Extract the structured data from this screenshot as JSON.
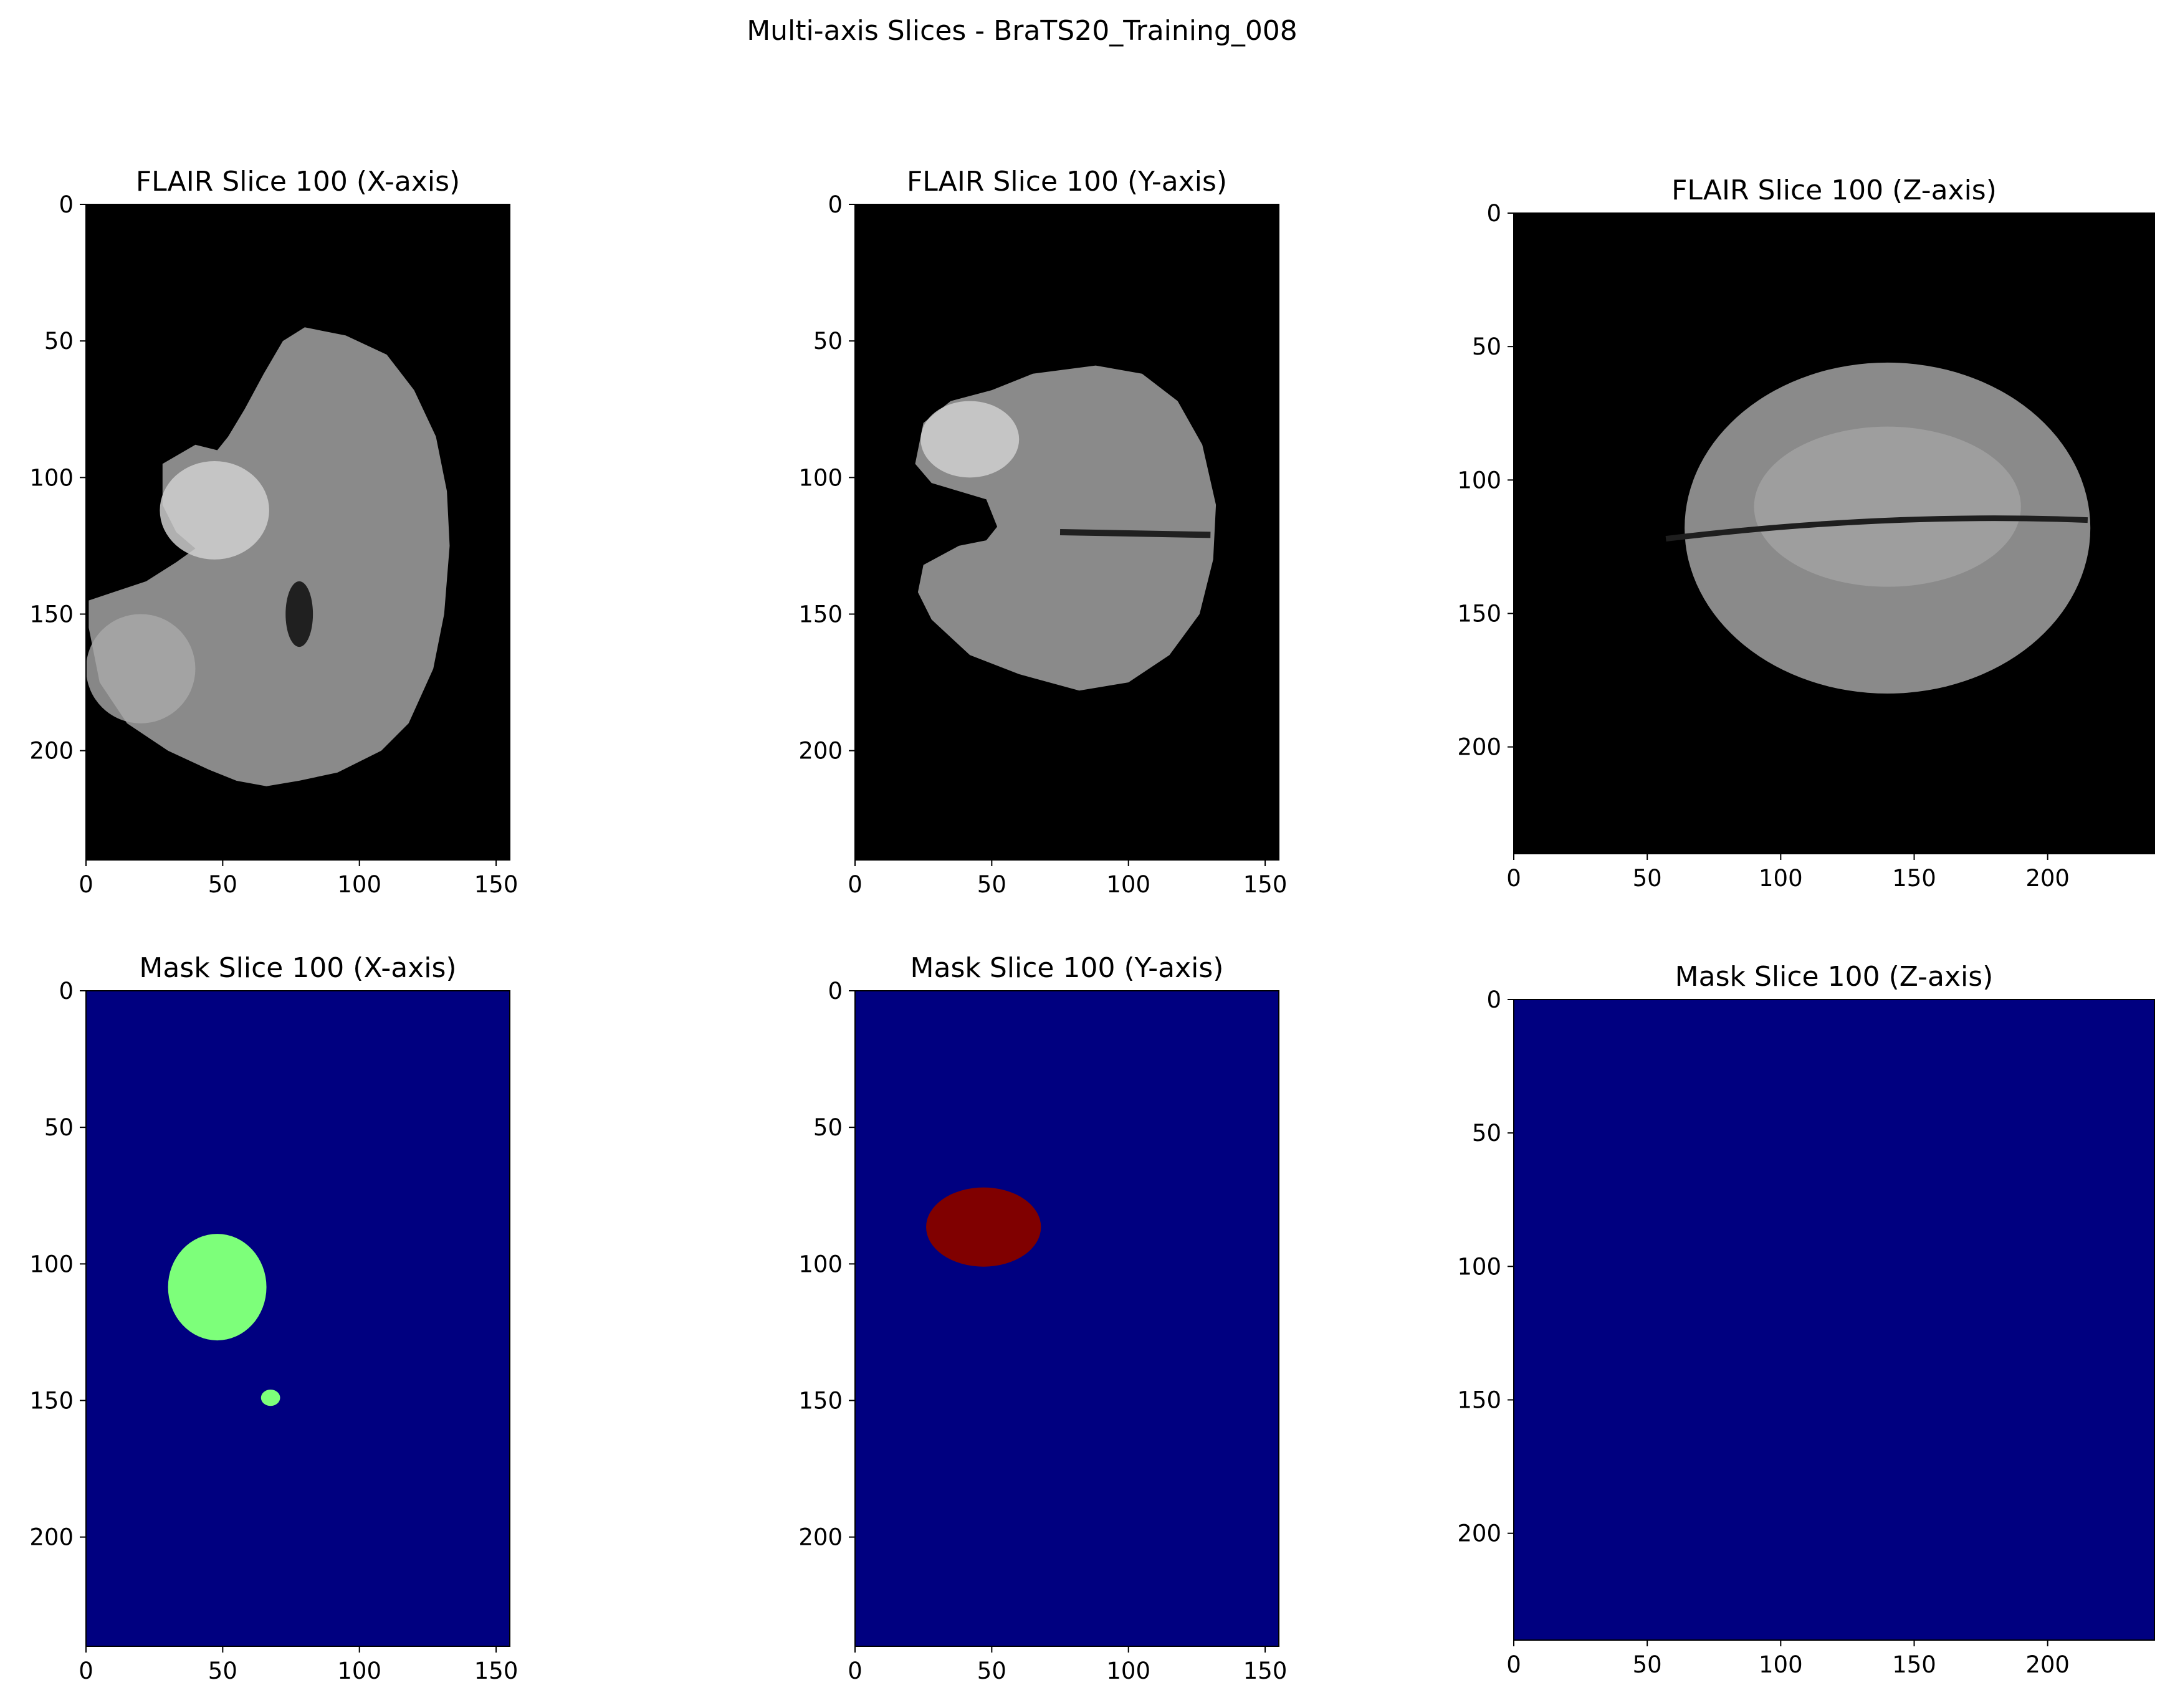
{
  "figure": {
    "suptitle": "Multi-axis Slices - BraTS20_Training_008"
  },
  "colors": {
    "flair_background": "#000000",
    "mask_background": "#000080",
    "mask_label_green": "#7dff7a",
    "mask_label_darkred": "#800000",
    "tissue_gray": "#8a8a8a",
    "tissue_bright": "#cfcfcf"
  },
  "chart_data": [
    {
      "type": "heatmap",
      "title": "FLAIR Slice 100 (X-axis)",
      "colormap": "gray",
      "x_ticks": [
        "0",
        "50",
        "100",
        "150"
      ],
      "y_ticks": [
        "0",
        "50",
        "100",
        "150",
        "200"
      ],
      "xlim": [
        0,
        155
      ],
      "ylim": [
        240,
        0
      ],
      "grid": false,
      "content": "sagittal brain slice with bright hyperintense lesion region near x 30-60, y 90-130"
    },
    {
      "type": "heatmap",
      "title": "FLAIR Slice 100 (Y-axis)",
      "colormap": "gray",
      "x_ticks": [
        "0",
        "50",
        "100",
        "150"
      ],
      "y_ticks": [
        "0",
        "50",
        "100",
        "150",
        "200"
      ],
      "xlim": [
        0,
        155
      ],
      "ylim": [
        240,
        0
      ],
      "grid": false,
      "content": "coronal brain slice with bright region near x 25-60, y 70-100"
    },
    {
      "type": "heatmap",
      "title": "FLAIR Slice 100 (Z-axis)",
      "colormap": "gray",
      "x_ticks": [
        "0",
        "50",
        "100",
        "150",
        "200"
      ],
      "y_ticks": [
        "0",
        "50",
        "100",
        "150",
        "200"
      ],
      "xlim": [
        0,
        240
      ],
      "ylim": [
        240,
        0
      ],
      "grid": false,
      "content": "axial brain slice with midline fissure near y 120"
    },
    {
      "type": "heatmap",
      "title": "Mask Slice 100 (X-axis)",
      "colormap": "jet",
      "x_ticks": [
        "0",
        "50",
        "100",
        "150"
      ],
      "y_ticks": [
        "0",
        "50",
        "100",
        "150",
        "200"
      ],
      "xlim": [
        0,
        155
      ],
      "ylim": [
        240,
        0
      ],
      "grid": false,
      "regions": [
        {
          "label": "green",
          "x_range": [
            30,
            66
          ],
          "y_range": [
            89,
            128
          ]
        },
        {
          "label": "green",
          "x_range": [
            64,
            71
          ],
          "y_range": [
            146,
            152
          ]
        }
      ]
    },
    {
      "type": "heatmap",
      "title": "Mask Slice 100 (Y-axis)",
      "colormap": "jet",
      "x_ticks": [
        "0",
        "50",
        "100",
        "150"
      ],
      "y_ticks": [
        "0",
        "50",
        "100",
        "150",
        "200"
      ],
      "xlim": [
        0,
        155
      ],
      "ylim": [
        240,
        0
      ],
      "grid": false,
      "regions": [
        {
          "label": "dark red",
          "x_range": [
            26,
            68
          ],
          "y_range": [
            72,
            101
          ]
        }
      ]
    },
    {
      "type": "heatmap",
      "title": "Mask Slice 100 (Z-axis)",
      "colormap": "jet",
      "x_ticks": [
        "0",
        "50",
        "100",
        "150",
        "200"
      ],
      "y_ticks": [
        "0",
        "50",
        "100",
        "150",
        "200"
      ],
      "xlim": [
        0,
        240
      ],
      "ylim": [
        240,
        0
      ],
      "grid": false,
      "regions": []
    }
  ]
}
